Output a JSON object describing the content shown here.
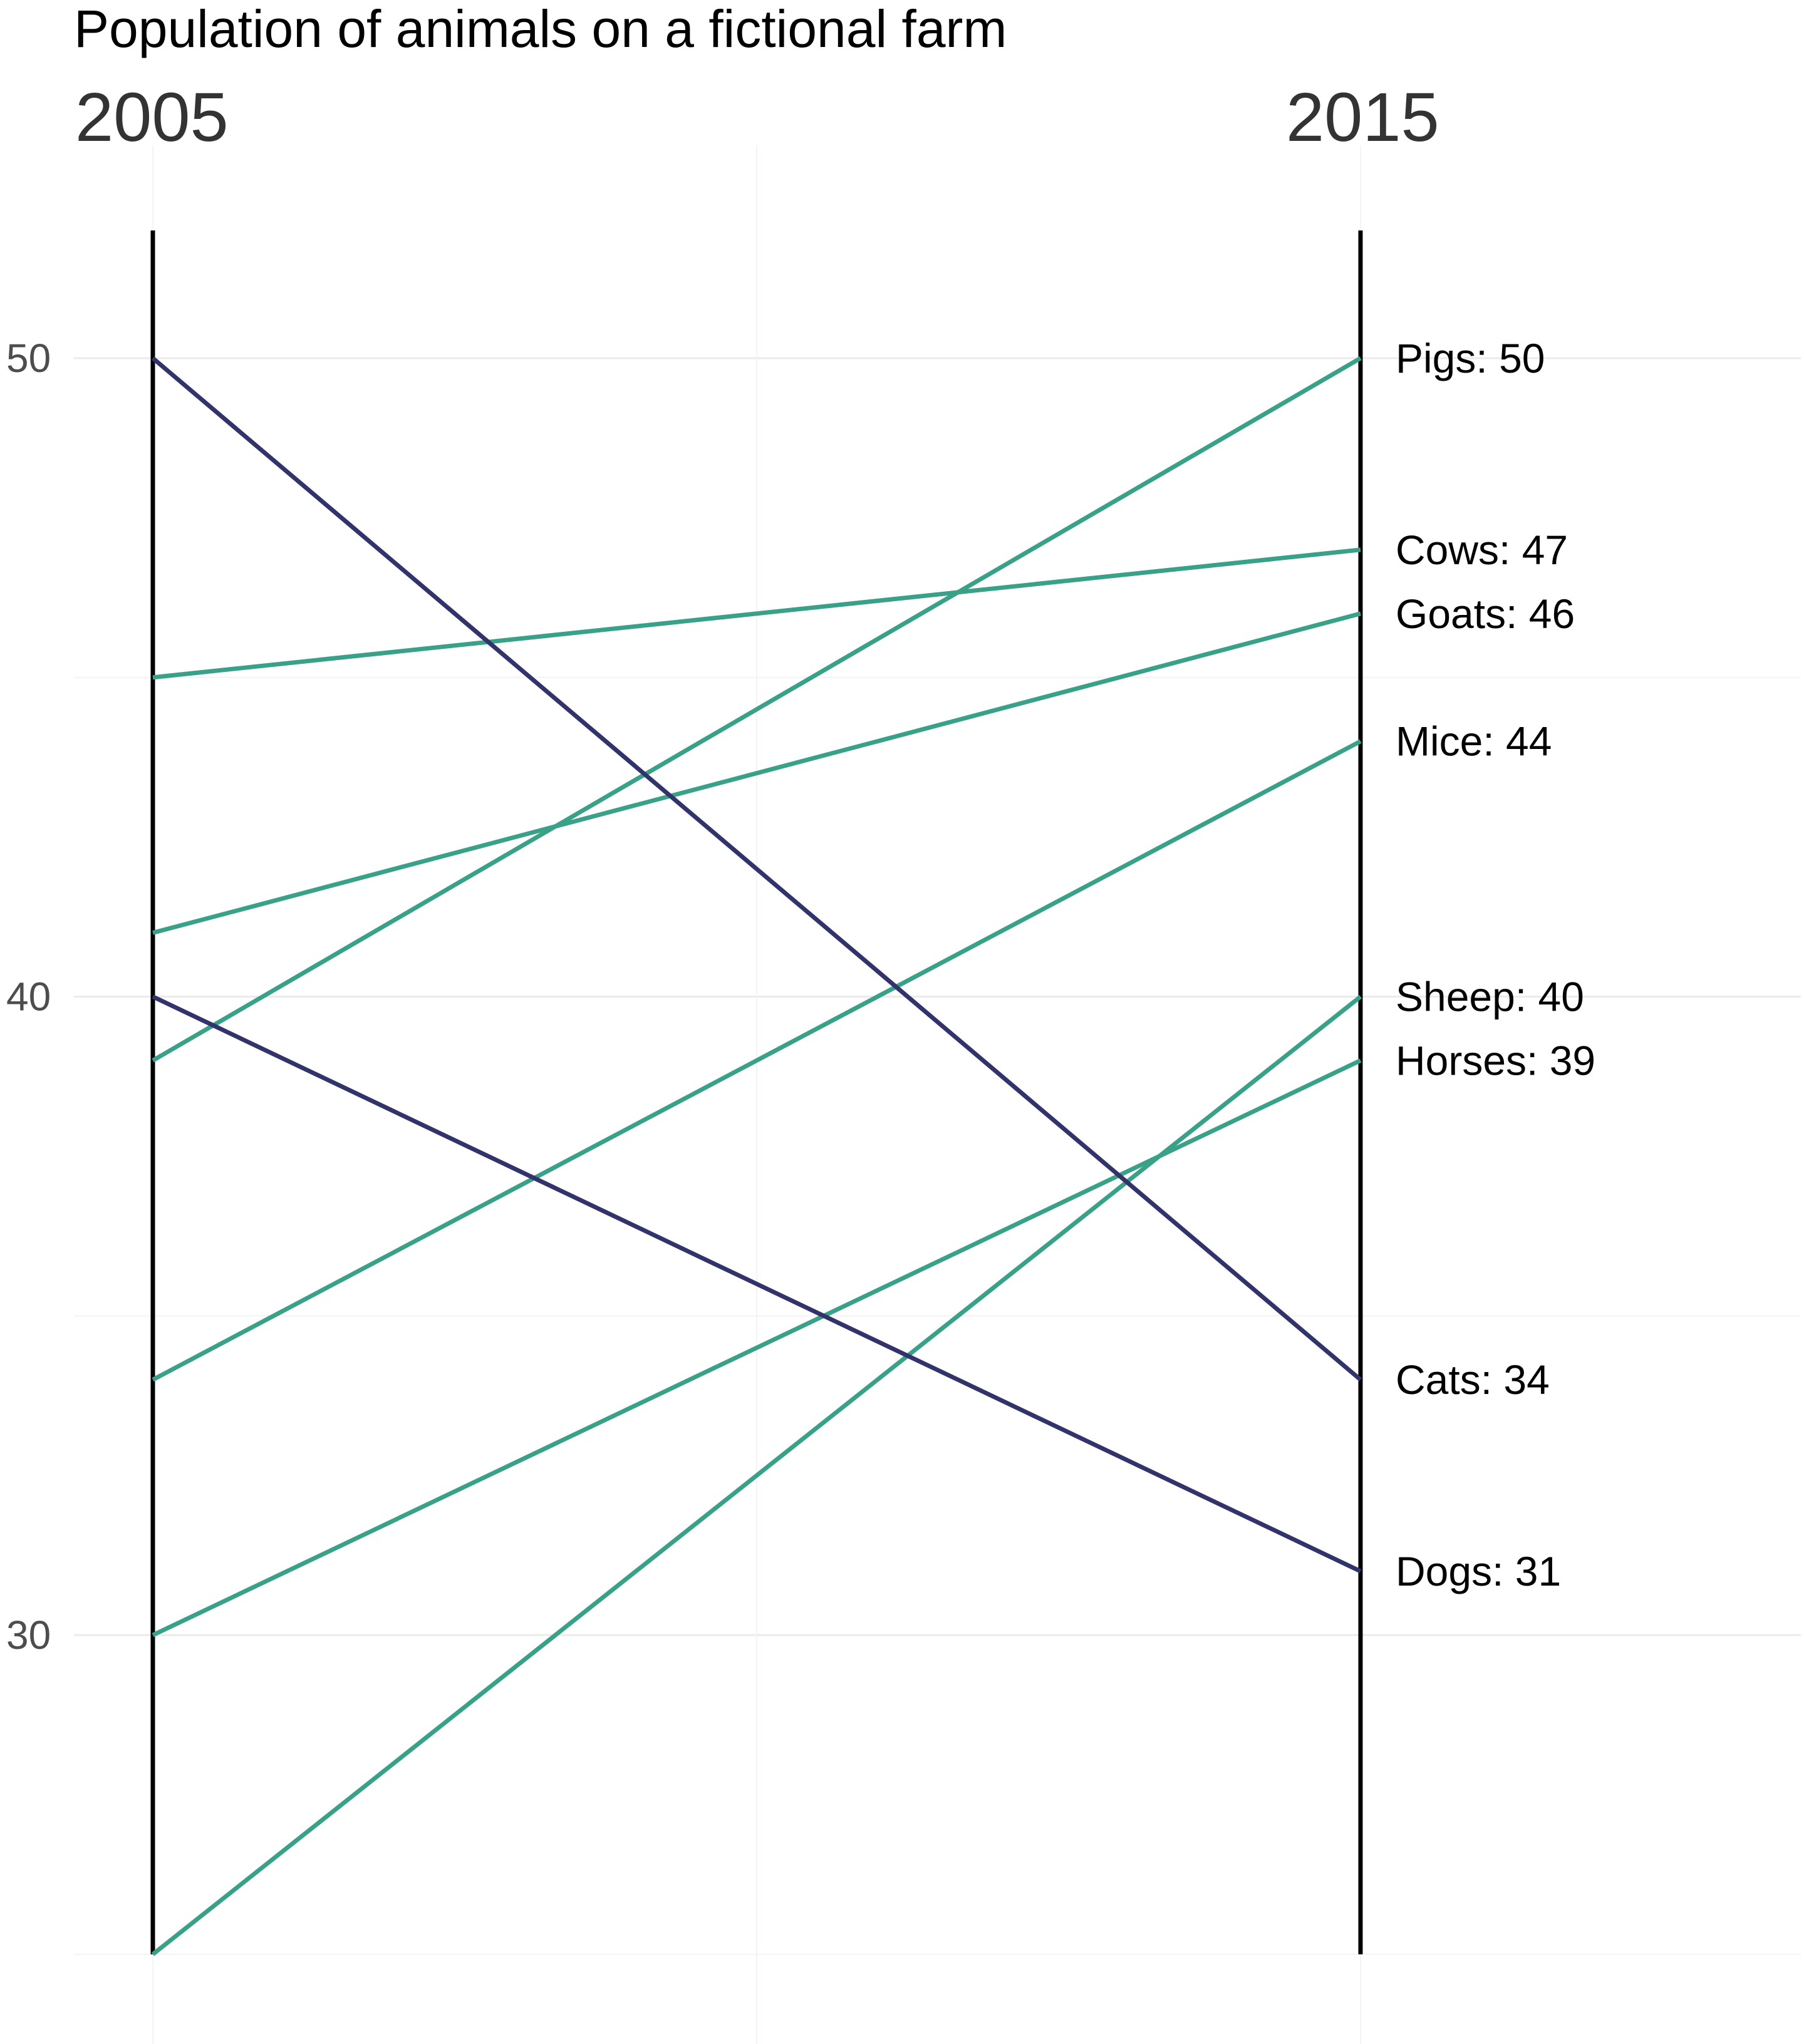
{
  "chart_data": {
    "type": "line",
    "title": "Population of animals on a fictional farm",
    "x": [
      "2005",
      "2015"
    ],
    "ylim": [
      25,
      52
    ],
    "yticks": [
      "30",
      "40",
      "50"
    ],
    "grid": true,
    "colors": {
      "increase": "#3aa189",
      "decrease": "#33336b"
    },
    "series": [
      {
        "name": "Pigs",
        "values": [
          39,
          50
        ],
        "label": "Pigs: 50"
      },
      {
        "name": "Cows",
        "values": [
          45,
          47
        ],
        "label": "Cows: 47"
      },
      {
        "name": "Goats",
        "values": [
          41,
          46
        ],
        "label": "Goats: 46"
      },
      {
        "name": "Mice",
        "values": [
          34,
          44
        ],
        "label": "Mice: 44"
      },
      {
        "name": "Sheep",
        "values": [
          25,
          40
        ],
        "label": "Sheep: 40"
      },
      {
        "name": "Horses",
        "values": [
          30,
          39
        ],
        "label": "Horses: 39"
      },
      {
        "name": "Cats",
        "values": [
          50,
          34
        ],
        "label": "Cats: 34"
      },
      {
        "name": "Dogs",
        "values": [
          40,
          31
        ],
        "label": "Dogs: 31"
      }
    ]
  }
}
